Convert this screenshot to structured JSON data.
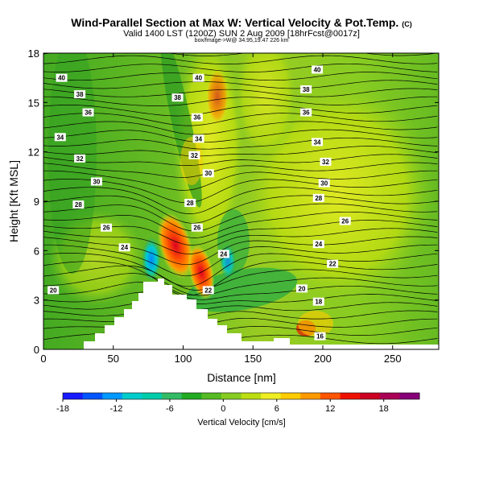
{
  "header": {
    "title": "Wind-Parallel Section at Max W: Vertical Velocity & Pot.Temp.",
    "title_mark": "(C)",
    "subtitle": "Valid 1400 LST (1200Z) SUN 2 Aug 2009 [18hrFcst@0017z]",
    "info": "box/fmage->W@ 34.95,19.47 226 km"
  },
  "chart_data": {
    "type": "heatmap",
    "xlabel": "Distance [nm]",
    "ylabel": "Height [Kft MSL]",
    "xlim": [
      0,
      283
    ],
    "ylim": [
      0,
      18
    ],
    "x_ticks": [
      0,
      50,
      100,
      150,
      200,
      250
    ],
    "y_ticks": [
      0,
      3,
      6,
      9,
      12,
      15,
      18
    ],
    "colorbar": {
      "label": "Vertical Velocity [cm/s]",
      "range": [
        -18,
        22
      ],
      "ticks": [
        -18,
        -12,
        -6,
        0,
        6,
        12,
        18
      ],
      "colors": [
        "#1a1aff",
        "#0055ff",
        "#0099ff",
        "#00cccc",
        "#00ccaa",
        "#33bb66",
        "#22aa22",
        "#55bb22",
        "#88cc22",
        "#bbdd11",
        "#eeee22",
        "#ffcc00",
        "#ff9900",
        "#ff5500",
        "#ee1100",
        "#cc0022",
        "#aa0055",
        "#880077"
      ]
    },
    "terrain_label": "",
    "contour_labels": [
      {
        "v": "40",
        "x": 13,
        "y": 16.5
      },
      {
        "v": "40",
        "x": 111,
        "y": 16.5
      },
      {
        "v": "40",
        "x": 196,
        "y": 17.0
      },
      {
        "v": "38",
        "x": 26,
        "y": 15.5
      },
      {
        "v": "38",
        "x": 96,
        "y": 15.3
      },
      {
        "v": "38",
        "x": 188,
        "y": 15.8
      },
      {
        "v": "36",
        "x": 32,
        "y": 14.4
      },
      {
        "v": "36",
        "x": 110,
        "y": 14.1
      },
      {
        "v": "36",
        "x": 188,
        "y": 14.4
      },
      {
        "v": "34",
        "x": 12,
        "y": 12.9
      },
      {
        "v": "34",
        "x": 111,
        "y": 12.8
      },
      {
        "v": "34",
        "x": 196,
        "y": 12.6
      },
      {
        "v": "32",
        "x": 26,
        "y": 11.6
      },
      {
        "v": "32",
        "x": 108,
        "y": 11.8
      },
      {
        "v": "32",
        "x": 202,
        "y": 11.4
      },
      {
        "v": "30",
        "x": 38,
        "y": 10.2
      },
      {
        "v": "30",
        "x": 118,
        "y": 10.7
      },
      {
        "v": "30",
        "x": 201,
        "y": 10.1
      },
      {
        "v": "28",
        "x": 25,
        "y": 8.8
      },
      {
        "v": "28",
        "x": 105,
        "y": 8.9
      },
      {
        "v": "28",
        "x": 197,
        "y": 9.2
      },
      {
        "v": "26",
        "x": 45,
        "y": 7.4
      },
      {
        "v": "26",
        "x": 110,
        "y": 7.4
      },
      {
        "v": "26",
        "x": 216,
        "y": 7.8
      },
      {
        "v": "24",
        "x": 58,
        "y": 6.2
      },
      {
        "v": "24",
        "x": 129,
        "y": 5.8
      },
      {
        "v": "24",
        "x": 197,
        "y": 6.4
      },
      {
        "v": "22",
        "x": 207,
        "y": 5.2
      },
      {
        "v": "22",
        "x": 118,
        "y": 3.6
      },
      {
        "v": "20",
        "x": 7,
        "y": 3.6
      },
      {
        "v": "20",
        "x": 185,
        "y": 3.7
      },
      {
        "v": "18",
        "x": 197,
        "y": 2.9
      },
      {
        "v": "16",
        "x": 198,
        "y": 0.8
      }
    ]
  }
}
